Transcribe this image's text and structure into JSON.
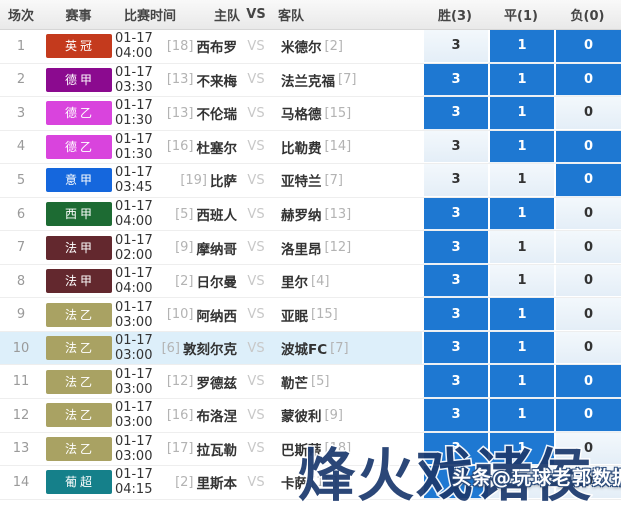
{
  "header": {
    "cols": [
      "场次",
      "赛事",
      "比赛时间",
      "主队",
      "VS",
      "客队",
      "胜(3)",
      "平(1)",
      "负(0)"
    ]
  },
  "league_colors": {
    "英冠": "#c43a1d",
    "德甲": "#8b0a8f",
    "德乙": "#d944dd",
    "意甲": "#1567dd",
    "西甲": "#1d6b33",
    "法甲": "#63282e",
    "法乙": "#a9a263",
    "葡超": "#15808a"
  },
  "odds_highlight_color": "#1e78d2",
  "rows": [
    {
      "no": "1",
      "league": "英冠",
      "time": "01-17 04:00",
      "home_rank": "[18]",
      "home": "西布罗",
      "vs": "VS",
      "away": "米德尔",
      "away_rank": "[2]",
      "win": "3",
      "draw": "1",
      "lose": "0",
      "win_hl": false,
      "draw_hl": true,
      "lose_hl": true,
      "row_hl": false
    },
    {
      "no": "2",
      "league": "德甲",
      "time": "01-17 03:30",
      "home_rank": "[13]",
      "home": "不来梅",
      "vs": "VS",
      "away": "法兰克福",
      "away_rank": "[7]",
      "win": "3",
      "draw": "1",
      "lose": "0",
      "win_hl": true,
      "draw_hl": true,
      "lose_hl": true,
      "row_hl": false
    },
    {
      "no": "3",
      "league": "德乙",
      "time": "01-17 01:30",
      "home_rank": "[13]",
      "home": "不伦瑞",
      "vs": "VS",
      "away": "马格德",
      "away_rank": "[15]",
      "win": "3",
      "draw": "1",
      "lose": "0",
      "win_hl": true,
      "draw_hl": true,
      "lose_hl": false,
      "row_hl": false
    },
    {
      "no": "4",
      "league": "德乙",
      "time": "01-17 01:30",
      "home_rank": "[16]",
      "home": "杜塞尔",
      "vs": "VS",
      "away": "比勒费",
      "away_rank": "[14]",
      "win": "3",
      "draw": "1",
      "lose": "0",
      "win_hl": false,
      "draw_hl": true,
      "lose_hl": true,
      "row_hl": false
    },
    {
      "no": "5",
      "league": "意甲",
      "time": "01-17 03:45",
      "home_rank": "[19]",
      "home": "比萨",
      "vs": "VS",
      "away": "亚特兰",
      "away_rank": "[7]",
      "win": "3",
      "draw": "1",
      "lose": "0",
      "win_hl": false,
      "draw_hl": false,
      "lose_hl": true,
      "row_hl": false
    },
    {
      "no": "6",
      "league": "西甲",
      "time": "01-17 04:00",
      "home_rank": "[5]",
      "home": "西班人",
      "vs": "VS",
      "away": "赫罗纳",
      "away_rank": "[13]",
      "win": "3",
      "draw": "1",
      "lose": "0",
      "win_hl": true,
      "draw_hl": true,
      "lose_hl": false,
      "row_hl": false
    },
    {
      "no": "7",
      "league": "法甲",
      "time": "01-17 02:00",
      "home_rank": "[9]",
      "home": "摩纳哥",
      "vs": "VS",
      "away": "洛里昂",
      "away_rank": "[12]",
      "win": "3",
      "draw": "1",
      "lose": "0",
      "win_hl": true,
      "draw_hl": false,
      "lose_hl": false,
      "row_hl": false
    },
    {
      "no": "8",
      "league": "法甲",
      "time": "01-17 04:00",
      "home_rank": "[2]",
      "home": "日尔曼",
      "vs": "VS",
      "away": "里尔",
      "away_rank": "[4]",
      "win": "3",
      "draw": "1",
      "lose": "0",
      "win_hl": true,
      "draw_hl": false,
      "lose_hl": false,
      "row_hl": false
    },
    {
      "no": "9",
      "league": "法乙",
      "time": "01-17 03:00",
      "home_rank": "[10]",
      "home": "阿纳西",
      "vs": "VS",
      "away": "亚眠",
      "away_rank": "[15]",
      "win": "3",
      "draw": "1",
      "lose": "0",
      "win_hl": true,
      "draw_hl": true,
      "lose_hl": false,
      "row_hl": false
    },
    {
      "no": "10",
      "league": "法乙",
      "time": "01-17 03:00",
      "home_rank": "[6]",
      "home": "敦刻尔克",
      "vs": "VS",
      "away": "波城FC",
      "away_rank": "[7]",
      "win": "3",
      "draw": "1",
      "lose": "0",
      "win_hl": true,
      "draw_hl": true,
      "lose_hl": false,
      "row_hl": true
    },
    {
      "no": "11",
      "league": "法乙",
      "time": "01-17 03:00",
      "home_rank": "[12]",
      "home": "罗德兹",
      "vs": "VS",
      "away": "勒芒",
      "away_rank": "[5]",
      "win": "3",
      "draw": "1",
      "lose": "0",
      "win_hl": true,
      "draw_hl": true,
      "lose_hl": true,
      "row_hl": false
    },
    {
      "no": "12",
      "league": "法乙",
      "time": "01-17 03:00",
      "home_rank": "[16]",
      "home": "布洛涅",
      "vs": "VS",
      "away": "蒙彼利",
      "away_rank": "[9]",
      "win": "3",
      "draw": "1",
      "lose": "0",
      "win_hl": true,
      "draw_hl": true,
      "lose_hl": true,
      "row_hl": false
    },
    {
      "no": "13",
      "league": "法乙",
      "time": "01-17 03:00",
      "home_rank": "[17]",
      "home": "拉瓦勒",
      "vs": "VS",
      "away": "巴斯蒂",
      "away_rank": "[18]",
      "win": "3",
      "draw": "1",
      "lose": "0",
      "win_hl": true,
      "draw_hl": true,
      "lose_hl": false,
      "row_hl": false
    },
    {
      "no": "14",
      "league": "葡超",
      "time": "01-17 04:15",
      "home_rank": "[2]",
      "home": "里斯本",
      "vs": "VS",
      "away": "卡萨",
      "away_rank": "[15]",
      "win": "3",
      "draw": "1",
      "lose": "0",
      "win_hl": true,
      "draw_hl": false,
      "lose_hl": false,
      "row_hl": false
    }
  ],
  "watermark": {
    "big": "烽火戏诸侯",
    "small": "头条@玩球老郭数据"
  }
}
